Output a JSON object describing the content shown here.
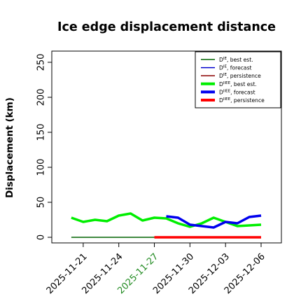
{
  "chart_data": {
    "type": "line",
    "title": "Ice edge displacement distance",
    "ylabel": "Displacement (km)",
    "xlabel": "",
    "ylim": [
      0,
      260
    ],
    "xlim": [
      "2025-11-19",
      "2025-12-06"
    ],
    "grid": false,
    "legend_placement": "top-right",
    "y_ticks": [
      0,
      50,
      100,
      150,
      200,
      250
    ],
    "x_ticks": [
      {
        "date": "2025-11-21",
        "label": "2025-11-21",
        "color": "#000000"
      },
      {
        "date": "2025-11-24",
        "label": "2025-11-24",
        "color": "#000000"
      },
      {
        "date": "2025-11-27",
        "label": "2025-11-27",
        "color": "#228B22"
      },
      {
        "date": "2025-11-30",
        "label": "2025-11-30",
        "color": "#000000"
      },
      {
        "date": "2025-12-03",
        "label": "2025-12-03",
        "color": "#000000"
      },
      {
        "date": "2025-12-06",
        "label": "2025-12-06",
        "color": "#000000"
      }
    ],
    "series": [
      {
        "key": "dI_best",
        "legend": {
          "base": "D",
          "sup": "IE",
          "rest": ", best est."
        },
        "color": "#006400",
        "width": 1.5,
        "x": [
          "2025-11-20",
          "2025-11-21",
          "2025-11-22",
          "2025-11-23",
          "2025-11-24",
          "2025-11-25",
          "2025-11-26",
          "2025-11-27"
        ],
        "y": [
          0,
          0,
          0,
          0,
          0,
          0,
          0,
          0
        ]
      },
      {
        "key": "dI_forecast",
        "legend": {
          "base": "D",
          "sup": "IE",
          "rest": ", forecast"
        },
        "color": "#0000CD",
        "width": 1.5,
        "x": [
          "2025-11-27",
          "2025-11-28",
          "2025-11-29",
          "2025-11-30",
          "2025-12-01",
          "2025-12-02",
          "2025-12-03",
          "2025-12-04",
          "2025-12-05",
          "2025-12-06"
        ],
        "y": [
          0,
          0,
          0,
          0,
          0,
          0,
          0,
          0,
          0,
          0
        ]
      },
      {
        "key": "dI_persist",
        "legend": {
          "base": "D",
          "sup": "IE",
          "rest": ", persistence"
        },
        "color": "#8B0000",
        "width": 1.5,
        "x": [
          "2025-11-27",
          "2025-11-28",
          "2025-11-29",
          "2025-11-30",
          "2025-12-01",
          "2025-12-02",
          "2025-12-03",
          "2025-12-04",
          "2025-12-05",
          "2025-12-06"
        ],
        "y": [
          0,
          0,
          0,
          0,
          0,
          0,
          0,
          0,
          0,
          0
        ]
      },
      {
        "key": "dII_best",
        "legend": {
          "base": "D",
          "sup": "IIEE",
          "rest": ", best est."
        },
        "color": "#00EE00",
        "width": 3.5,
        "x": [
          "2025-11-20",
          "2025-11-21",
          "2025-11-22",
          "2025-11-23",
          "2025-11-24",
          "2025-11-25",
          "2025-11-26",
          "2025-11-27",
          "2025-11-28",
          "2025-11-29",
          "2025-11-30",
          "2025-12-01",
          "2025-12-02",
          "2025-12-03",
          "2025-12-04",
          "2025-12-05",
          "2025-12-06"
        ],
        "y": [
          28,
          22,
          25,
          23,
          31,
          34,
          24,
          28,
          27,
          20,
          15,
          20,
          28,
          22,
          16,
          17,
          18
        ]
      },
      {
        "key": "dII_forecast",
        "legend": {
          "base": "D",
          "sup": "IIEE",
          "rest": ", forecast"
        },
        "color": "#0000EE",
        "width": 3.5,
        "x": [
          "2025-11-28",
          "2025-11-29",
          "2025-11-30",
          "2025-12-01",
          "2025-12-02",
          "2025-12-03",
          "2025-12-04",
          "2025-12-05",
          "2025-12-06"
        ],
        "y": [
          30,
          28,
          18,
          16,
          14,
          22,
          20,
          29,
          31
        ]
      },
      {
        "key": "dII_persist",
        "legend": {
          "base": "D",
          "sup": "IIEE",
          "rest": ", persistence"
        },
        "color": "#FF0000",
        "width": 3.5,
        "x": [
          "2025-11-27",
          "2025-11-28",
          "2025-11-29",
          "2025-11-30",
          "2025-12-01",
          "2025-12-02",
          "2025-12-03",
          "2025-12-04",
          "2025-12-05",
          "2025-12-06"
        ],
        "y": [
          0,
          0,
          0,
          0,
          0,
          0,
          0,
          0,
          0,
          0
        ]
      }
    ]
  }
}
